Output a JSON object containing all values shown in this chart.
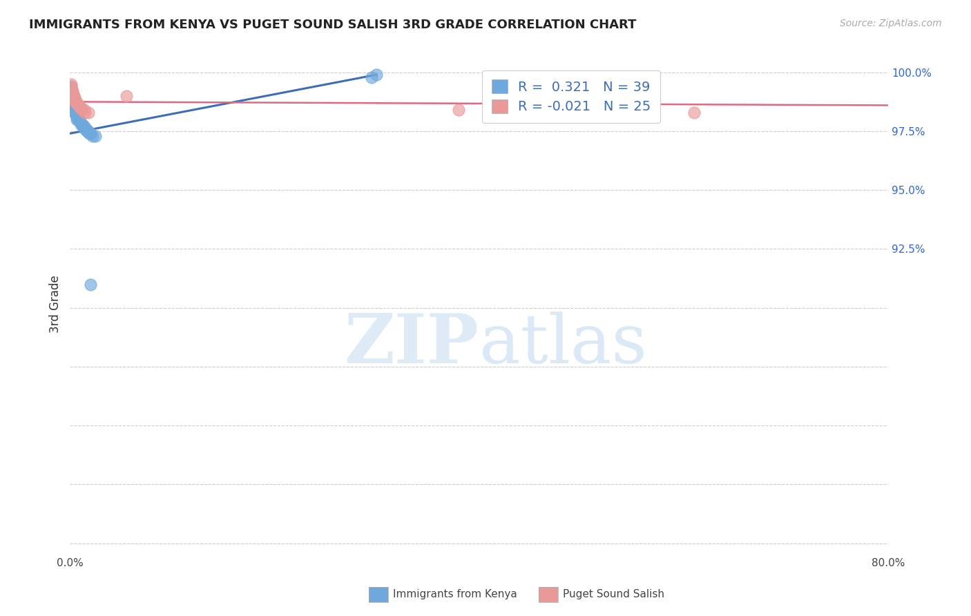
{
  "title": "IMMIGRANTS FROM KENYA VS PUGET SOUND SALISH 3RD GRADE CORRELATION CHART",
  "source": "Source: ZipAtlas.com",
  "ylabel": "3rd Grade",
  "xlim": [
    0.0,
    0.8
  ],
  "ylim": [
    0.795,
    1.008
  ],
  "blue_R": 0.321,
  "blue_N": 39,
  "pink_R": -0.021,
  "pink_N": 25,
  "blue_color": "#6fa8dc",
  "pink_color": "#ea9999",
  "blue_line_color": "#3d6eb5",
  "pink_line_color": "#e06880",
  "legend_label_blue": "Immigrants from Kenya",
  "legend_label_pink": "Puget Sound Salish",
  "blue_x": [
    0.001,
    0.001,
    0.001,
    0.001,
    0.001,
    0.002,
    0.002,
    0.002,
    0.002,
    0.002,
    0.003,
    0.003,
    0.003,
    0.004,
    0.004,
    0.005,
    0.005,
    0.006,
    0.006,
    0.007,
    0.007,
    0.008,
    0.009,
    0.01,
    0.011,
    0.012,
    0.013,
    0.014,
    0.015,
    0.016,
    0.017,
    0.018,
    0.019,
    0.02,
    0.022,
    0.025,
    0.295,
    0.3,
    0.02
  ],
  "blue_y": [
    0.994,
    0.993,
    0.992,
    0.991,
    0.99,
    0.992,
    0.991,
    0.99,
    0.989,
    0.988,
    0.989,
    0.988,
    0.987,
    0.986,
    0.985,
    0.984,
    0.983,
    0.982,
    0.982,
    0.981,
    0.98,
    0.98,
    0.98,
    0.979,
    0.978,
    0.978,
    0.977,
    0.977,
    0.976,
    0.976,
    0.975,
    0.975,
    0.974,
    0.974,
    0.973,
    0.973,
    0.998,
    0.999,
    0.91
  ],
  "pink_x": [
    0.001,
    0.001,
    0.002,
    0.002,
    0.003,
    0.003,
    0.004,
    0.004,
    0.004,
    0.005,
    0.005,
    0.006,
    0.006,
    0.007,
    0.008,
    0.009,
    0.01,
    0.011,
    0.012,
    0.014,
    0.015,
    0.018,
    0.055,
    0.38,
    0.61
  ],
  "pink_y": [
    0.995,
    0.994,
    0.993,
    0.992,
    0.992,
    0.991,
    0.99,
    0.99,
    0.989,
    0.989,
    0.988,
    0.988,
    0.987,
    0.987,
    0.986,
    0.986,
    0.985,
    0.985,
    0.984,
    0.984,
    0.983,
    0.983,
    0.99,
    0.984,
    0.983
  ],
  "watermark_zip": "ZIP",
  "watermark_atlas": "atlas",
  "background_color": "#ffffff",
  "grid_color": "#cccccc",
  "ytick_vals": [
    0.8,
    0.825,
    0.85,
    0.875,
    0.9,
    0.925,
    0.95,
    0.975,
    1.0
  ],
  "ytick_labels": [
    "",
    "",
    "",
    "",
    "",
    "92.5%",
    "95.0%",
    "97.5%",
    "100.0%"
  ],
  "xtick_vals": [
    0.0,
    0.1,
    0.2,
    0.3,
    0.4,
    0.5,
    0.6,
    0.7,
    0.8
  ],
  "title_fontsize": 13,
  "source_fontsize": 10,
  "axis_label_fontsize": 12,
  "tick_fontsize": 11,
  "legend_fontsize": 14
}
